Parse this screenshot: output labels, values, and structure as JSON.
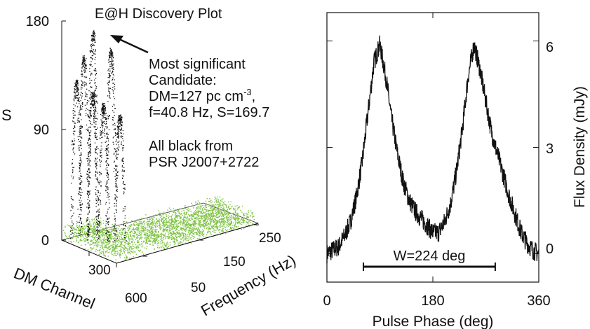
{
  "chart_data": [
    {
      "type": "scatter",
      "title": "E@H Discovery Plot",
      "zlabel": "S",
      "zlim": [
        0,
        180
      ],
      "z_ticks": [
        "0",
        "90",
        "180"
      ],
      "xlabel": "DM Channel",
      "x_ticks": [
        "300",
        "600"
      ],
      "ylabel": "Frequency (Hz)",
      "y_ticks": [
        "50",
        "150",
        "250"
      ],
      "annotation": {
        "lines": [
          "Most significant",
          "Candidate:",
          "DM=127 pc cm",
          "-3",
          ",",
          "f=40.8 Hz, S=169.7"
        ]
      },
      "note": [
        "All black from",
        "PSR J2007+2722"
      ],
      "peak": {
        "dm": 127,
        "f": 40.8,
        "S": 169.7
      },
      "colors": {
        "candidates": "#111111",
        "noise": "#7dc242"
      }
    },
    {
      "type": "line",
      "xlabel": "Pulse Phase (deg)",
      "ylabel": "Flux Density (mJy)",
      "xlim": [
        0,
        360
      ],
      "ylim": [
        -0.8,
        6.8
      ],
      "x_ticks": [
        0,
        180,
        360
      ],
      "y_ticks": [
        0,
        3,
        6
      ],
      "width_marker": {
        "label": "W=224 deg",
        "from": 62,
        "to": 286
      },
      "series": [
        {
          "x": [
            0,
            10,
            20,
            30,
            40,
            50,
            60,
            70,
            80,
            90,
            100,
            110,
            120,
            130,
            140,
            150,
            160,
            170,
            180,
            190,
            200,
            210,
            220,
            230,
            240,
            250,
            260,
            270,
            280,
            290,
            300,
            310,
            320,
            330,
            340,
            350,
            360
          ],
          "values": [
            0.0,
            0.1,
            0.2,
            0.5,
            0.9,
            1.6,
            2.6,
            4.0,
            5.4,
            5.9,
            5.0,
            3.8,
            2.8,
            2.0,
            1.5,
            1.2,
            1.0,
            0.8,
            0.6,
            0.6,
            0.9,
            1.4,
            2.3,
            3.5,
            5.0,
            5.9,
            5.2,
            4.3,
            3.4,
            2.8,
            2.2,
            1.6,
            1.1,
            0.6,
            0.3,
            0.1,
            0.0
          ]
        }
      ]
    }
  ]
}
